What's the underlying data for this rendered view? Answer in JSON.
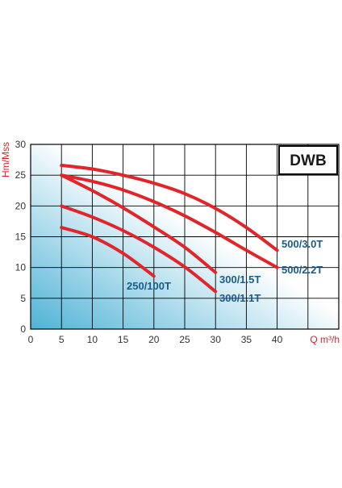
{
  "chart_data": {
    "type": "line",
    "title": "DWB",
    "xlabel": "Q m³/h",
    "ylabel": "Hm/Mss",
    "xlim": [
      0,
      50
    ],
    "ylim": [
      0,
      30
    ],
    "x_ticks": [
      "0",
      "5",
      "10",
      "15",
      "20",
      "25",
      "30",
      "35",
      "40"
    ],
    "y_ticks": [
      "0",
      "5",
      "10",
      "15",
      "20",
      "25",
      "30"
    ],
    "grid": true,
    "legend": "inline labels at line ends",
    "colors": {
      "line": "#e0262a",
      "label_text": "#1a5b8c",
      "axis_label": "#d7262f",
      "grid": "#000000",
      "background_gradient_start": "#4fb3d6",
      "background_gradient_end": "#ffffff"
    },
    "series": [
      {
        "name": "500/3.0T",
        "x": [
          5,
          10,
          15,
          20,
          25,
          30,
          35,
          40
        ],
        "y": [
          26.6,
          26,
          25,
          23.7,
          22,
          19.6,
          16.5,
          12.8
        ]
      },
      {
        "name": "500/2.2T",
        "x": [
          5,
          10,
          15,
          20,
          25,
          30,
          35,
          40
        ],
        "y": [
          25,
          24,
          22.6,
          20.7,
          18.4,
          15.7,
          12.8,
          10
        ]
      },
      {
        "name": "300/1.5T",
        "x": [
          5,
          10,
          15,
          20,
          25,
          30
        ],
        "y": [
          25,
          22.5,
          19.7,
          16.6,
          13.3,
          9.2
        ]
      },
      {
        "name": "300/1.1T",
        "x": [
          5,
          10,
          15,
          20,
          25,
          30
        ],
        "y": [
          20,
          18.2,
          16,
          13.3,
          10.1,
          6.1
        ]
      },
      {
        "name": "250/100T",
        "x": [
          5,
          10,
          15,
          20
        ],
        "y": [
          16.5,
          15,
          12.3,
          8.6
        ]
      }
    ]
  }
}
